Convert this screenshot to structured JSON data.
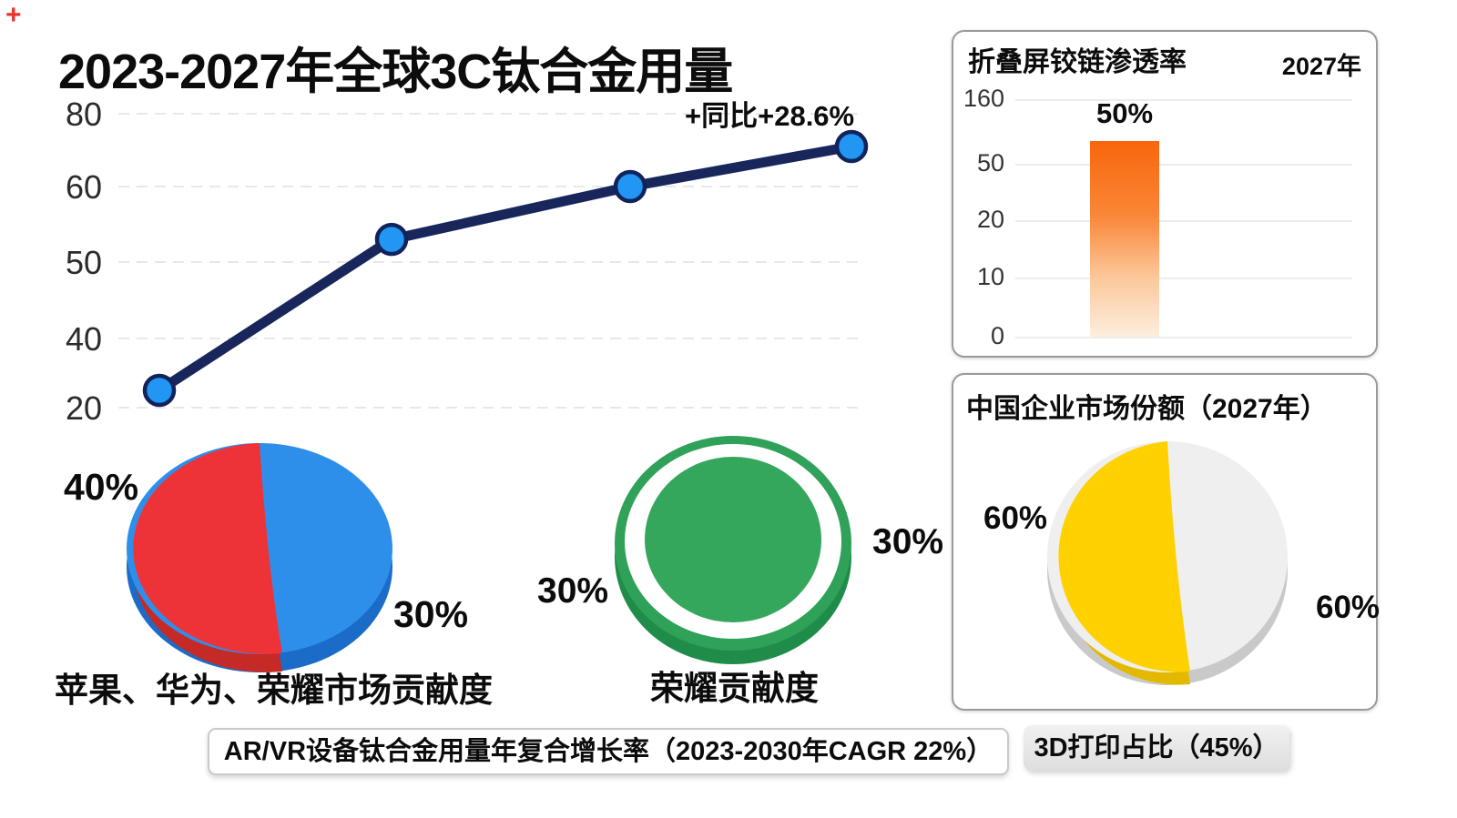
{
  "title": "2023-2027年全球3C钛合金用量",
  "corner_mark": "+",
  "footer": {
    "note_arvr": "AR/VR设备钛合金用量年复合增长率（2023-2030年CAGR 22%）",
    "note_3dp": "3D打印占比（45%）"
  },
  "colors": {
    "line": "#18265c",
    "marker": "#2196f3",
    "red": "#ee3338",
    "blue": "#2e8feb",
    "green": "#35a75c",
    "yellow": "#ffd100",
    "light_gray_slice": "#efefef",
    "bar_orange_top": "#f8660c",
    "bar_orange_bottom": "#fdeedd"
  },
  "chart_data": [
    {
      "id": "line-titanium-usage",
      "type": "line",
      "title": "2023-2027年全球3C钛合金用量",
      "annotation": "+同比+28.6%",
      "y_ticks": [
        20,
        40,
        50,
        60,
        80
      ],
      "values": [
        25,
        53,
        60,
        71
      ],
      "ylim": [
        20,
        80
      ],
      "grid": true,
      "legend": "none",
      "line_color": "#18265c",
      "marker_color": "#2196f3"
    },
    {
      "id": "pie-market-contribution",
      "type": "pie",
      "caption": "苹果、华为、荣耀市场贡献度",
      "slices": [
        {
          "label": "40%",
          "value": 40,
          "color": "#ee3338"
        },
        {
          "label": "30%",
          "value": 30,
          "color": "#2e8feb"
        }
      ]
    },
    {
      "id": "donut-honor-contribution",
      "type": "pie",
      "caption": "荣耀贡献度",
      "slices": [
        {
          "label": "30%",
          "value": 30,
          "color": "#35a75c"
        },
        {
          "label": "30%",
          "value": 30,
          "color": "#35a75c"
        }
      ]
    },
    {
      "id": "bar-hinge-penetration",
      "type": "bar",
      "title": "折叠屏铰链渗透率",
      "subtitle": "2027年",
      "y_ticks": [
        0,
        10,
        20,
        50,
        160
      ],
      "categories": [
        "2027"
      ],
      "values": [
        50
      ],
      "bar_label": "50%",
      "bar_color_top": "#f8660c",
      "bar_color_bottom": "#fdeedd",
      "grid": true
    },
    {
      "id": "pie-china-market-share",
      "type": "pie",
      "title": "中国企业市场份额（2027年）",
      "slices": [
        {
          "label": "60%",
          "value": 60,
          "color": "#ffd100"
        },
        {
          "label": "60%",
          "value": 60,
          "color": "#efefef"
        }
      ]
    }
  ]
}
